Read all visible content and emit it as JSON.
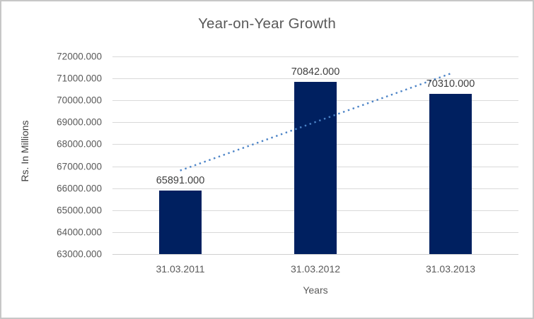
{
  "window": {
    "background_color": "#ffffff",
    "border_color": "#c7c7c7"
  },
  "chart_data": {
    "type": "bar",
    "title": "Year-on-Year Growth",
    "xlabel": "Years",
    "ylabel": "Rs. In Millions",
    "categories": [
      "31.03.2011",
      "31.03.2012",
      "31.03.2013"
    ],
    "values": [
      65891,
      70842,
      70310
    ],
    "data_labels": [
      "65891.000",
      "70842.000",
      "70310.000"
    ],
    "ylim": [
      63000,
      72000
    ],
    "ytick_step": 1000,
    "ytick_labels": [
      "63000.000",
      "64000.000",
      "65000.000",
      "66000.000",
      "67000.000",
      "68000.000",
      "69000.000",
      "70000.000",
      "71000.000",
      "72000.000"
    ],
    "grid": true,
    "legend": "none",
    "colors": {
      "bar_fill": "#002060",
      "trendline": "#4a82c6",
      "title_text": "#595959",
      "tick_text": "#595959",
      "data_label_text": "#404040",
      "gridline": "#d9d9d9",
      "axis_line": "#d0d0d0"
    },
    "trendline": {
      "type": "linear",
      "style": "dotted",
      "color": "#4a82c6"
    }
  }
}
